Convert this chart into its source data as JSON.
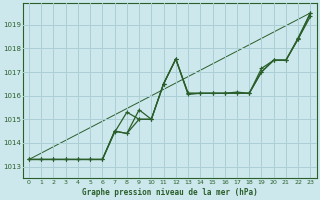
{
  "title": "Graphe pression niveau de la mer (hPa)",
  "bg_color": "#cce8ec",
  "grid_color": "#aacfd4",
  "line_color": "#2a5e2a",
  "xlim": [
    -0.5,
    23.5
  ],
  "ylim": [
    1012.5,
    1019.9
  ],
  "yticks": [
    1013,
    1014,
    1015,
    1016,
    1017,
    1018,
    1019
  ],
  "xticks": [
    0,
    1,
    2,
    3,
    4,
    5,
    6,
    7,
    8,
    9,
    10,
    11,
    12,
    13,
    14,
    15,
    16,
    17,
    18,
    19,
    20,
    21,
    22,
    23
  ],
  "series1": [
    1013.3,
    1013.3,
    1013.3,
    1013.3,
    1013.3,
    1013.3,
    1013.3,
    1014.5,
    1014.4,
    1015.4,
    1015.0,
    1016.5,
    1017.55,
    1016.1,
    1016.1,
    1016.1,
    1016.1,
    1016.1,
    1016.1,
    1017.0,
    1017.5,
    1017.5,
    1018.4,
    1019.35
  ],
  "series2": [
    1013.3,
    1013.3,
    1013.3,
    1013.3,
    1013.3,
    1013.3,
    1013.3,
    1014.5,
    1014.4,
    1015.0,
    1015.0,
    1016.5,
    1017.55,
    1016.05,
    1016.1,
    1016.1,
    1016.1,
    1016.15,
    1016.1,
    1017.15,
    1017.5,
    1017.5,
    1018.4,
    1019.5
  ],
  "series3": [
    1013.3,
    1013.3,
    1013.3,
    1013.3,
    1013.3,
    1013.3,
    1013.3,
    1014.45,
    1015.3,
    1015.0,
    1015.0,
    1016.5,
    1017.55,
    1016.1,
    1016.1,
    1016.1,
    1016.1,
    1016.1,
    1016.1,
    1017.0,
    1017.5,
    1017.5,
    1018.45,
    1019.5
  ],
  "trend_x": [
    0,
    23
  ],
  "trend_y": [
    1013.3,
    1019.5
  ]
}
